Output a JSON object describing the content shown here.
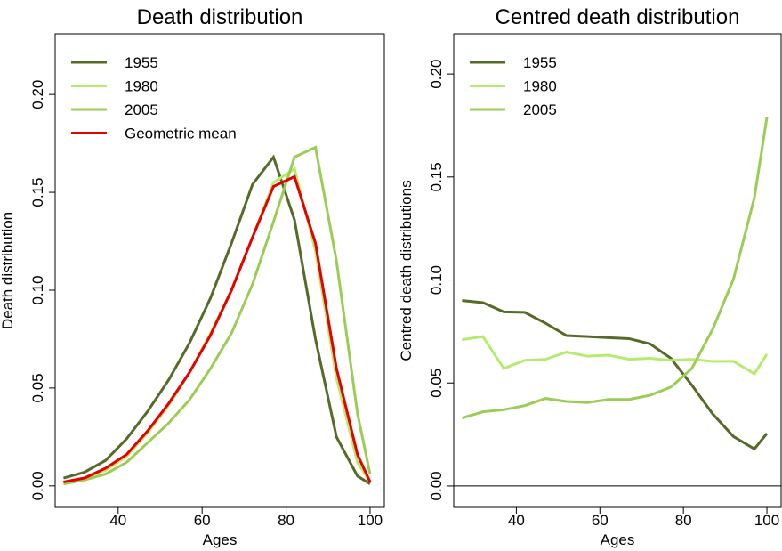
{
  "chart_data": [
    {
      "type": "line",
      "title": "Death distribution",
      "xlabel": "Ages",
      "ylabel": "Death distribution",
      "x": [
        27,
        32,
        37,
        42,
        47,
        52,
        57,
        62,
        67,
        72,
        77,
        82,
        87,
        92,
        97,
        100
      ],
      "xlim": [
        25,
        103.4
      ],
      "ylim": [
        -0.011,
        0.231
      ],
      "xticks": [
        40,
        60,
        80,
        100
      ],
      "yticks": [
        {
          "value": 0,
          "label": "0.00"
        },
        {
          "value": 0.05,
          "label": "0.05"
        },
        {
          "value": 0.1,
          "label": "0.10"
        },
        {
          "value": 0.15,
          "label": "0.15"
        },
        {
          "value": 0.2,
          "label": "0.20"
        }
      ],
      "legend": "topleft",
      "series": [
        {
          "name": "1955",
          "color": "#566b28",
          "values": [
            0.004,
            0.007,
            0.013,
            0.024,
            0.038,
            0.054,
            0.073,
            0.096,
            0.124,
            0.154,
            0.168,
            0.136,
            0.075,
            0.025,
            0.005,
            0.001
          ]
        },
        {
          "name": "1980",
          "color": "#b5ec6f",
          "values": [
            0.002,
            0.004,
            0.008,
            0.015,
            0.027,
            0.041,
            0.058,
            0.078,
            0.1,
            0.127,
            0.155,
            0.162,
            0.12,
            0.055,
            0.012,
            0.002
          ]
        },
        {
          "name": "2005",
          "color": "#9bcd55",
          "values": [
            0.001,
            0.003,
            0.006,
            0.012,
            0.022,
            0.032,
            0.044,
            0.06,
            0.078,
            0.103,
            0.135,
            0.168,
            0.173,
            0.115,
            0.037,
            0.006
          ]
        },
        {
          "name": "Geometric mean",
          "color": "#e60000",
          "values": [
            0.002,
            0.004,
            0.009,
            0.016,
            0.028,
            0.042,
            0.058,
            0.077,
            0.1,
            0.127,
            0.153,
            0.158,
            0.124,
            0.06,
            0.016,
            0.002
          ]
        }
      ]
    },
    {
      "type": "line",
      "title": "Centred death distribution",
      "xlabel": "Ages",
      "ylabel": "Centred death distributions",
      "x": [
        27,
        32,
        37,
        42,
        47,
        52,
        57,
        62,
        67,
        72,
        77,
        82,
        87,
        92,
        97,
        100
      ],
      "xlim": [
        25,
        103.4
      ],
      "ylim": [
        -0.0104,
        0.2195
      ],
      "xticks": [
        40,
        60,
        80,
        100
      ],
      "yticks": [
        {
          "value": 0,
          "label": "0.00"
        },
        {
          "value": 0.05,
          "label": "0.05"
        },
        {
          "value": 0.1,
          "label": "0.10"
        },
        {
          "value": 0.15,
          "label": "0.15"
        },
        {
          "value": 0.2,
          "label": "0.20"
        }
      ],
      "hline": 0,
      "legend": "topleft",
      "series": [
        {
          "name": "1955",
          "color": "#566b28",
          "values": [
            0.09,
            0.089,
            0.0845,
            0.0843,
            0.079,
            0.073,
            0.0725,
            0.072,
            0.0715,
            0.069,
            0.062,
            0.049,
            0.035,
            0.024,
            0.018,
            0.0255
          ]
        },
        {
          "name": "1980",
          "color": "#b5ec6f",
          "values": [
            0.071,
            0.0725,
            0.057,
            0.061,
            0.0615,
            0.065,
            0.063,
            0.0635,
            0.0615,
            0.062,
            0.061,
            0.0615,
            0.0605,
            0.0605,
            0.0545,
            0.064
          ]
        },
        {
          "name": "2005",
          "color": "#9bcd55",
          "values": [
            0.033,
            0.036,
            0.037,
            0.039,
            0.0425,
            0.041,
            0.0405,
            0.042,
            0.042,
            0.044,
            0.048,
            0.057,
            0.076,
            0.1005,
            0.14,
            0.179
          ]
        }
      ]
    }
  ]
}
